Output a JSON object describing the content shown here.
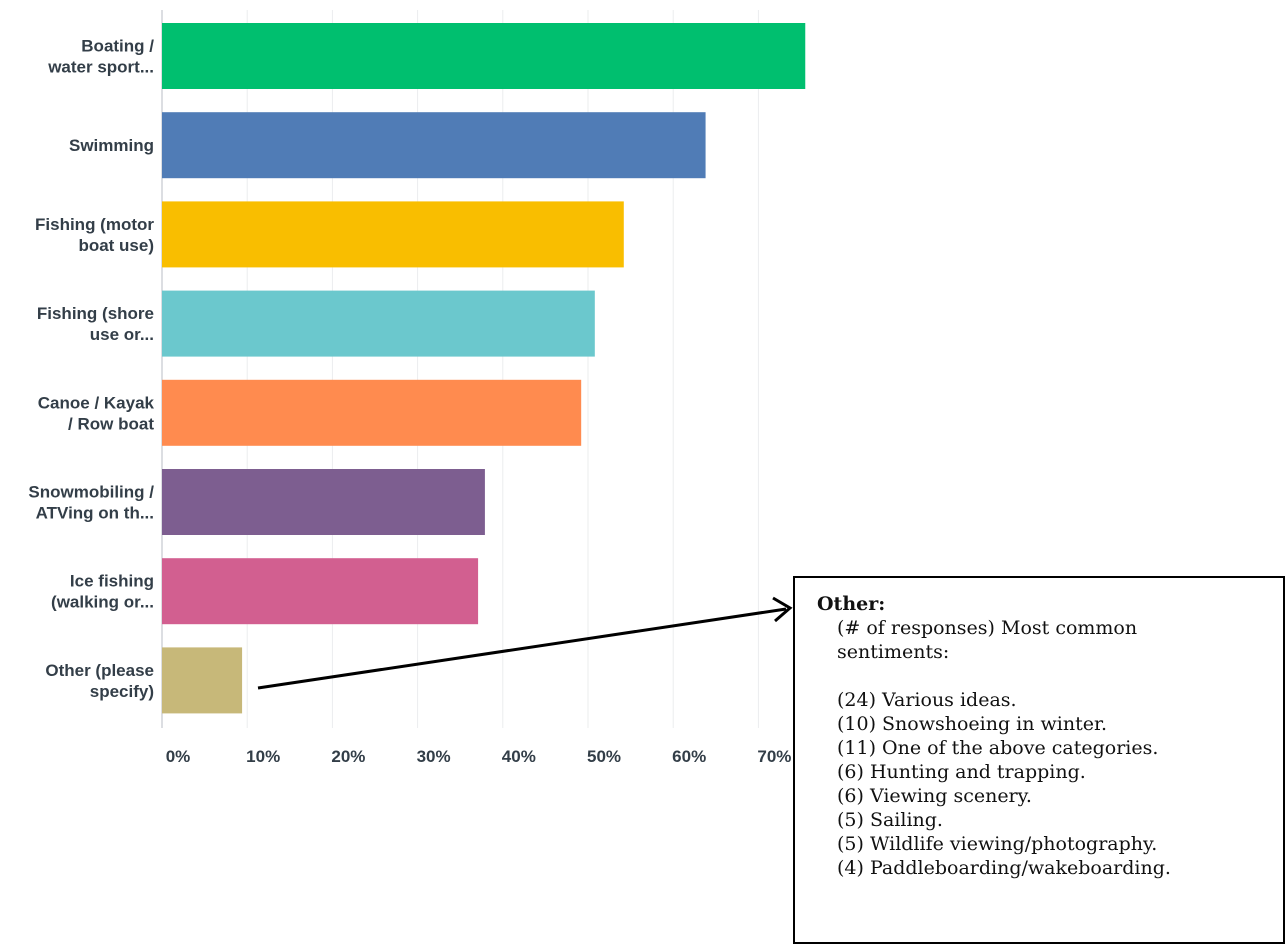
{
  "chart_data": {
    "type": "bar",
    "orientation": "horizontal",
    "categories": [
      [
        "Boating /",
        "water sport..."
      ],
      [
        "Swimming"
      ],
      [
        "Fishing (motor",
        "boat use)"
      ],
      [
        "Fishing (shore",
        "use or..."
      ],
      [
        "Canoe / Kayak",
        "/ Row boat"
      ],
      [
        "Snowmobiling /",
        "ATVing on th..."
      ],
      [
        "Ice fishing",
        "(walking or..."
      ],
      [
        "Other (please",
        "specify)"
      ]
    ],
    "values": [
      75.5,
      63.8,
      54.2,
      50.8,
      49.2,
      37.9,
      37.1,
      9.4
    ],
    "colors": [
      "#00bf6f",
      "#507cb6",
      "#f9be00",
      "#6bc8cd",
      "#ff8b4f",
      "#7d5e90",
      "#d25f90",
      "#c7b879"
    ],
    "xticks": [
      "0%",
      "10%",
      "20%",
      "30%",
      "40%",
      "50%",
      "60%",
      "70%"
    ],
    "xlim": [
      0,
      80
    ],
    "grid": true
  },
  "callout": {
    "title": "Other:",
    "intro": "(# of responses) Most common sentiments:",
    "items": [
      "(24) Various ideas.",
      "(10) Snowshoeing in winter.",
      "(11) One of the above categories.",
      "(6) Hunting and trapping.",
      "(6) Viewing scenery.",
      "(5) Sailing.",
      "(5) Wildlife viewing/photography.",
      "(4) Paddleboarding/wakeboarding."
    ]
  }
}
